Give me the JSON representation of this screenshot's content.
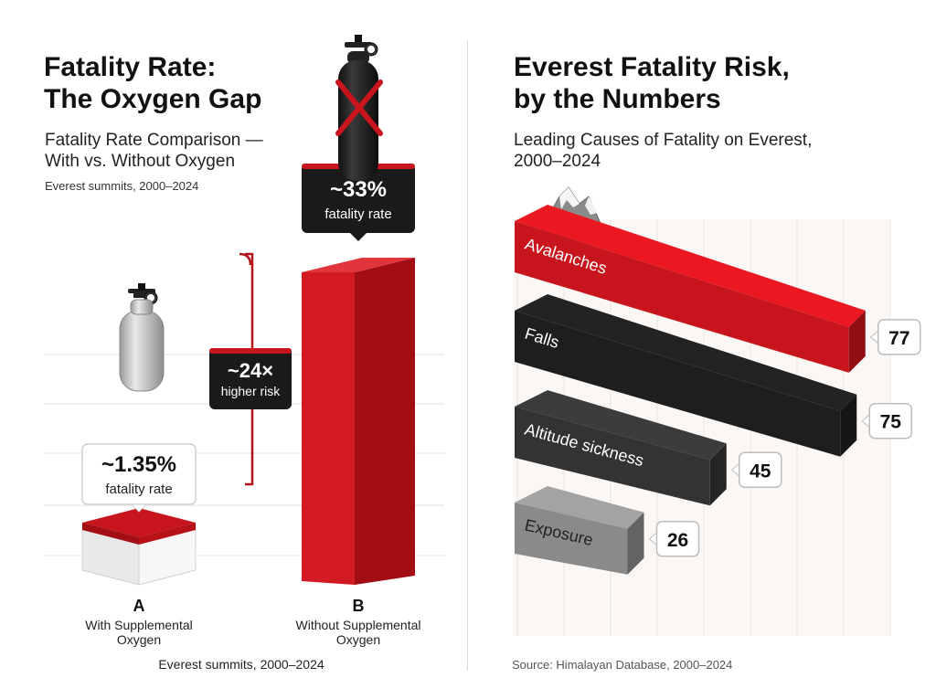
{
  "palette": {
    "red": "#c8141c",
    "black": "#1e1e1e",
    "dark_gray": "#333333",
    "gray": "#8a8a8a",
    "light": "#f2f2f2"
  },
  "left": {
    "title_line1": "Fatality Rate:",
    "title_line2": "The Oxygen Gap",
    "subtitle_line1": "Fatality Rate Comparison —",
    "subtitle_line2": "With vs. Without Oxygen",
    "note": "Everest summits, 2000–2024",
    "footer": "Everest summits, 2000–2024",
    "icons": [
      "oxygen-tank-icon",
      "crossed-out-oxygen-tank-icon"
    ],
    "comparison": {
      "value": "~24×",
      "label": "higher risk"
    }
  },
  "right": {
    "title_line1": "Everest Fatality Risk,",
    "title_line2": "by the Numbers",
    "subtitle_line1": "Leading Causes of Fatality on Everest,",
    "subtitle_line2": "2000–2024",
    "source": "Source: Himalayan Database, 2000–2024",
    "icons": [
      "mountain-icon"
    ]
  },
  "chart_data": [
    {
      "type": "bar",
      "title": "Fatality Rate Comparison — With vs. Without Oxygen",
      "categories": [
        "A",
        "B"
      ],
      "category_descriptions": [
        [
          "With Supplemental",
          "Oxygen"
        ],
        [
          "Without Supplemental",
          "Oxygen"
        ]
      ],
      "values": [
        1.35,
        33
      ],
      "value_labels": [
        "~1.35%",
        "~33%"
      ],
      "value_sublabels": [
        "fatality rate",
        "fatality rate"
      ],
      "colors": [
        "#efefef",
        "#c8141c"
      ]
    },
    {
      "type": "bar",
      "orientation": "horizontal",
      "title": "Leading Causes of Fatality on Everest, 2000–2024",
      "categories": [
        "Avalanches",
        "Falls",
        "Altitude sickness",
        "Exposure"
      ],
      "values": [
        77,
        75,
        45,
        26
      ],
      "value_labels": [
        "77",
        "75",
        "45",
        "26"
      ],
      "colors": [
        "#c8141c",
        "#1e1e1e",
        "#333333",
        "#8a8a8a"
      ]
    }
  ]
}
